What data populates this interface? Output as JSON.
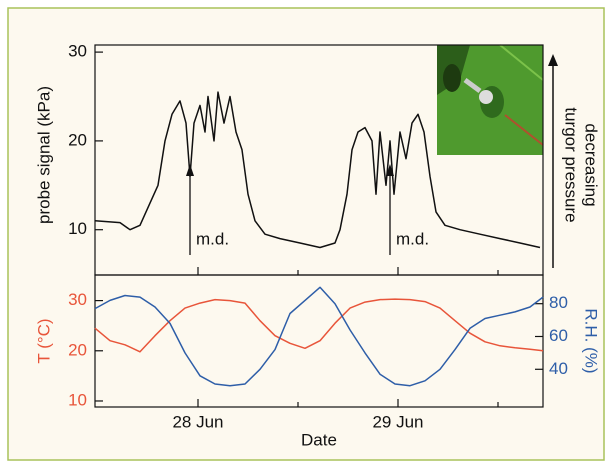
{
  "chart_data": [
    {
      "type": "line",
      "ylabel": "probe signal (kPa)",
      "side_label": [
        "decreasing",
        "turgor pressure"
      ],
      "ylim": [
        4.9,
        30.8
      ],
      "yticks": [
        10,
        20,
        30
      ],
      "color": "#111111",
      "x": [
        0.485,
        0.61,
        0.66,
        0.71,
        0.76,
        0.8,
        0.835,
        0.87,
        0.91,
        0.94,
        0.96,
        0.98,
        1.01,
        1.035,
        1.05,
        1.08,
        1.1,
        1.13,
        1.16,
        1.19,
        1.22,
        1.25,
        1.285,
        1.335,
        1.41,
        1.51,
        1.61,
        1.685,
        1.71,
        1.745,
        1.77,
        1.8,
        1.835,
        1.87,
        1.89,
        1.91,
        1.94,
        1.96,
        1.98,
        2.01,
        2.04,
        2.07,
        2.1,
        2.13,
        2.16,
        2.19,
        2.235,
        2.31,
        2.41,
        2.51,
        2.61,
        2.71
      ],
      "values": [
        11,
        10.8,
        10,
        10.5,
        13,
        15,
        20,
        23,
        24.5,
        22,
        16,
        22,
        24,
        21,
        25,
        20,
        25.5,
        22,
        25,
        21,
        19,
        14,
        11,
        9.5,
        9,
        8.5,
        8,
        8.5,
        10,
        14,
        19,
        21,
        21.5,
        20,
        14,
        21,
        15,
        20,
        14,
        21,
        18,
        22,
        23,
        21,
        16,
        12,
        10.5,
        10,
        9.5,
        9,
        8.5,
        8
      ],
      "annotations": [
        {
          "text": "m.d.",
          "x": 0.96
        },
        {
          "text": "m.d.",
          "x": 1.96
        }
      ]
    },
    {
      "type": "line",
      "xlabel": "Date",
      "ylabel": "T (°C)",
      "y2label": "R.H. (%)",
      "xlim": [
        0.485,
        2.725
      ],
      "xticks": [
        {
          "value": 1,
          "label": "28 Jun"
        },
        {
          "value": 2,
          "label": "29 Jun"
        }
      ],
      "xminorticks": [
        1.5,
        2.5
      ],
      "ylim": [
        8.8,
        35.1
      ],
      "yticks": [
        10,
        20,
        30
      ],
      "y2lim": [
        17,
        97.5
      ],
      "y2ticks": [
        40,
        60,
        80
      ],
      "x": [
        0.485,
        0.56,
        0.635,
        0.71,
        0.785,
        0.86,
        0.935,
        1.01,
        1.085,
        1.16,
        1.235,
        1.31,
        1.385,
        1.46,
        1.535,
        1.61,
        1.685,
        1.76,
        1.835,
        1.91,
        1.985,
        2.06,
        2.135,
        2.21,
        2.285,
        2.36,
        2.435,
        2.51,
        2.585,
        2.66,
        2.725
      ],
      "series": [
        {
          "color": "#e8553a",
          "values": [
            24.5,
            22,
            21.2,
            19.8,
            23,
            26,
            28.5,
            29.5,
            30.2,
            30,
            29.5,
            26,
            23,
            21.5,
            20.5,
            22,
            25.5,
            28.5,
            29.7,
            30.2,
            30.3,
            30.2,
            29.8,
            28.5,
            26,
            23.5,
            21.8,
            21,
            20.6,
            20.3,
            20
          ]
        },
        {
          "color": "#2e5ea8",
          "axis": "y2",
          "values": [
            77,
            82,
            85,
            84,
            78,
            68,
            50,
            36,
            31,
            30,
            31,
            40,
            52,
            74,
            82,
            90,
            80,
            64,
            50,
            37,
            31,
            30,
            33,
            40,
            52,
            65,
            71,
            73,
            75,
            78,
            84
          ]
        }
      ]
    }
  ]
}
